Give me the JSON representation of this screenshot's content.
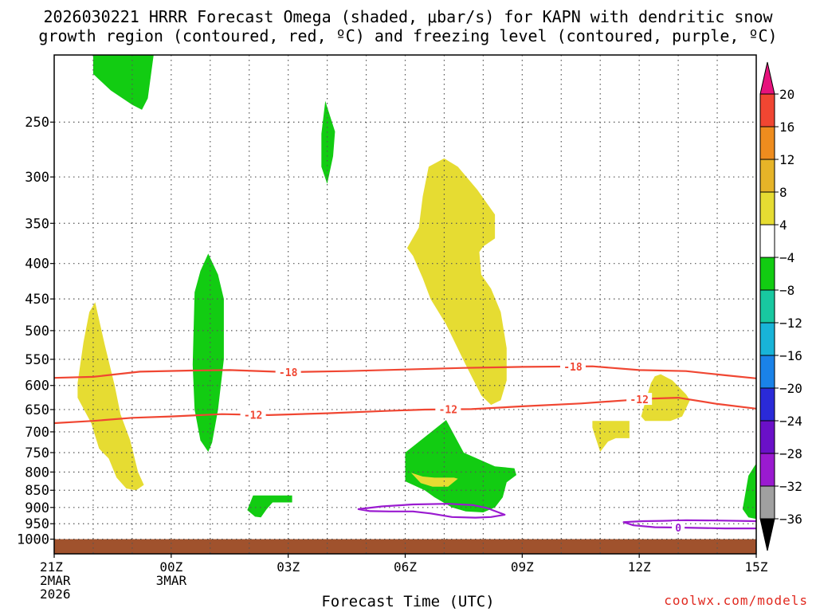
{
  "chart_data": {
    "type": "heatmap",
    "title_line1": "2026030221 HRRR Forecast Omega (shaded, μbar/s) for KAPN with dendritic snow",
    "title_line2": "growth region (contoured, red, ºC) and freezing level (contoured, purple, ºC)",
    "xlabel": "Forecast Time (UTC)",
    "ylabel": "",
    "credit": "coolwx.com/models",
    "x_range_hours": [
      0,
      18
    ],
    "y_scale": "log-pressure",
    "y_range_mb": [
      1050,
      200
    ],
    "x_ticks": [
      {
        "hour": 0,
        "lines": [
          "21Z",
          "2MAR",
          "2026"
        ]
      },
      {
        "hour": 3,
        "lines": [
          "00Z",
          "3MAR"
        ]
      },
      {
        "hour": 6,
        "lines": [
          "03Z"
        ]
      },
      {
        "hour": 9,
        "lines": [
          "06Z"
        ]
      },
      {
        "hour": 12,
        "lines": [
          "09Z"
        ]
      },
      {
        "hour": 15,
        "lines": [
          "12Z"
        ]
      },
      {
        "hour": 18,
        "lines": [
          "15Z"
        ]
      }
    ],
    "y_ticks": [
      250,
      300,
      350,
      400,
      450,
      500,
      550,
      600,
      650,
      700,
      750,
      800,
      850,
      900,
      950,
      1000
    ],
    "grid": true,
    "colorbar": {
      "levels": [
        -36,
        -32,
        -28,
        -24,
        -20,
        -16,
        -12,
        -8,
        -4,
        4,
        8,
        12,
        16,
        20
      ],
      "colors": [
        "#a0a0a0",
        "#9a1ad0",
        "#6a10c8",
        "#2a2ad8",
        "#1a82e8",
        "#18b4d8",
        "#18c8a0",
        "#12cc12",
        "#ffffff",
        "#e6dc32",
        "#e6b428",
        "#ee8c1e",
        "#f04632",
        "#e6127c"
      ],
      "under_color": "#000000",
      "over_color": "#e6127c"
    },
    "omega_regions": [
      {
        "level": "-8",
        "color": "#12cc12",
        "points": [
          [
            1,
            200
          ],
          [
            2.55,
            200
          ],
          [
            2.4,
            231
          ],
          [
            2.25,
            240
          ],
          [
            2.0,
            236
          ],
          [
            1.45,
            225
          ],
          [
            1.0,
            213
          ]
        ]
      },
      {
        "level": "-8",
        "color": "#12cc12",
        "points": [
          [
            6.95,
            233
          ],
          [
            7.2,
            258
          ],
          [
            7.15,
            280
          ],
          [
            7.0,
            307
          ],
          [
            6.85,
            290
          ],
          [
            6.85,
            260
          ]
        ]
      },
      {
        "level": "-8",
        "color": "#12cc12",
        "points": [
          [
            3.95,
            387
          ],
          [
            4.2,
            415
          ],
          [
            4.35,
            450
          ],
          [
            4.35,
            550
          ],
          [
            4.2,
            650
          ],
          [
            4.05,
            725
          ],
          [
            3.95,
            748
          ],
          [
            3.75,
            720
          ],
          [
            3.6,
            650
          ],
          [
            3.55,
            560
          ],
          [
            3.6,
            440
          ],
          [
            3.75,
            410
          ]
        ]
      },
      {
        "level": "-8",
        "color": "#12cc12",
        "points": [
          [
            5.1,
            865
          ],
          [
            6.1,
            865
          ],
          [
            6.1,
            885
          ],
          [
            5.6,
            885
          ],
          [
            5.45,
            905
          ],
          [
            5.3,
            930
          ],
          [
            5.15,
            928
          ],
          [
            4.95,
            908
          ]
        ]
      },
      {
        "level": "-8",
        "color": "#12cc12",
        "points": [
          [
            9.0,
            750
          ],
          [
            10.05,
            673
          ],
          [
            10.5,
            750
          ],
          [
            11.3,
            785
          ],
          [
            11.8,
            790
          ],
          [
            11.85,
            808
          ],
          [
            11.6,
            828
          ],
          [
            11.5,
            870
          ],
          [
            11.3,
            900
          ],
          [
            11.0,
            915
          ],
          [
            10.55,
            912
          ],
          [
            10.2,
            900
          ],
          [
            9.75,
            870
          ],
          [
            9.5,
            850
          ],
          [
            9.0,
            825
          ]
        ]
      },
      {
        "level": "-8",
        "color": "#12cc12",
        "points": [
          [
            17.95,
            785
          ],
          [
            18.0,
            778
          ],
          [
            18.0,
            935
          ],
          [
            17.8,
            930
          ],
          [
            17.65,
            905
          ],
          [
            17.75,
            840
          ],
          [
            17.8,
            810
          ]
        ]
      },
      {
        "level": "4",
        "color": "#e6dc32",
        "points": [
          [
            1.05,
            455
          ],
          [
            1.3,
            525
          ],
          [
            1.55,
            600
          ],
          [
            1.7,
            660
          ],
          [
            1.95,
            720
          ],
          [
            2.15,
            800
          ],
          [
            2.3,
            835
          ],
          [
            2.1,
            850
          ],
          [
            1.85,
            845
          ],
          [
            1.6,
            815
          ],
          [
            1.4,
            765
          ],
          [
            1.15,
            740
          ],
          [
            0.95,
            680
          ],
          [
            0.6,
            625
          ],
          [
            0.6,
            595
          ],
          [
            0.75,
            520
          ],
          [
            0.9,
            470
          ]
        ]
      },
      {
        "level": "4",
        "color": "#e6dc32",
        "points": [
          [
            9.6,
            290
          ],
          [
            10.0,
            282
          ],
          [
            10.35,
            290
          ],
          [
            10.85,
            313
          ],
          [
            11.3,
            340
          ],
          [
            11.3,
            368
          ],
          [
            11.0,
            378
          ],
          [
            10.9,
            385
          ],
          [
            10.95,
            415
          ],
          [
            11.2,
            435
          ],
          [
            11.45,
            470
          ],
          [
            11.6,
            530
          ],
          [
            11.6,
            590
          ],
          [
            11.45,
            630
          ],
          [
            11.2,
            640
          ],
          [
            10.95,
            620
          ],
          [
            10.55,
            560
          ],
          [
            10.05,
            490
          ],
          [
            9.65,
            450
          ],
          [
            9.45,
            420
          ],
          [
            9.2,
            390
          ],
          [
            9.05,
            380
          ],
          [
            9.35,
            355
          ],
          [
            9.45,
            320
          ]
        ]
      },
      {
        "level": "4",
        "color": "#e6dc32",
        "points": [
          [
            13.8,
            675
          ],
          [
            14.75,
            675
          ],
          [
            14.75,
            715
          ],
          [
            14.4,
            715
          ],
          [
            14.2,
            723
          ],
          [
            14.0,
            748
          ],
          [
            13.85,
            705
          ],
          [
            13.8,
            690
          ]
        ]
      },
      {
        "level": "4",
        "color": "#e6dc32",
        "points": [
          [
            15.4,
            582
          ],
          [
            15.55,
            578
          ],
          [
            15.85,
            590
          ],
          [
            16.2,
            618
          ],
          [
            16.3,
            630
          ],
          [
            16.1,
            665
          ],
          [
            15.8,
            675
          ],
          [
            15.45,
            675
          ],
          [
            15.15,
            675
          ],
          [
            15.05,
            665
          ],
          [
            15.15,
            635
          ],
          [
            15.3,
            595
          ]
        ]
      },
      {
        "level": "4",
        "color": "#e6dc32",
        "points": [
          [
            9.15,
            802
          ],
          [
            9.45,
            812
          ],
          [
            9.75,
            815
          ],
          [
            10.0,
            815
          ],
          [
            10.25,
            815
          ],
          [
            10.35,
            818
          ],
          [
            10.1,
            840
          ],
          [
            9.7,
            840
          ],
          [
            9.4,
            830
          ]
        ]
      }
    ],
    "dgz_contours": [
      {
        "label": "-18",
        "color": "#f04632",
        "points": [
          [
            0,
            585
          ],
          [
            1.0,
            583
          ],
          [
            2.2,
            573
          ],
          [
            3.5,
            571
          ],
          [
            4.5,
            570
          ],
          [
            6.0,
            574
          ],
          [
            7.5,
            572
          ],
          [
            9.0,
            569
          ],
          [
            10.5,
            566
          ],
          [
            12.0,
            564
          ],
          [
            13.8,
            563
          ],
          [
            15.0,
            570
          ],
          [
            16.2,
            572
          ],
          [
            17.2,
            580
          ],
          [
            18.0,
            586
          ]
        ],
        "label_hours": [
          6.0,
          13.3
        ]
      },
      {
        "label": "-12",
        "color": "#f04632",
        "points": [
          [
            0,
            680
          ],
          [
            1.0,
            675
          ],
          [
            2.0,
            668
          ],
          [
            3.0,
            665
          ],
          [
            4.3,
            660
          ],
          [
            5.5,
            662
          ],
          [
            7.0,
            658
          ],
          [
            8.5,
            653
          ],
          [
            9.5,
            650
          ],
          [
            10.7,
            649
          ],
          [
            12.0,
            643
          ],
          [
            13.5,
            637
          ],
          [
            14.7,
            630
          ],
          [
            15.2,
            627
          ],
          [
            16.0,
            625
          ],
          [
            17.0,
            638
          ],
          [
            18.0,
            648
          ]
        ],
        "label_hours": [
          5.1,
          10.1,
          15.0
        ]
      }
    ],
    "freezing_contours": [
      {
        "label": "0",
        "color": "#9a1ad0",
        "closed": true,
        "points": [
          [
            7.8,
            905
          ],
          [
            8.4,
            897
          ],
          [
            9.2,
            891
          ],
          [
            10.1,
            889
          ],
          [
            10.75,
            893
          ],
          [
            11.1,
            902
          ],
          [
            11.55,
            922
          ],
          [
            11.2,
            929
          ],
          [
            10.8,
            931
          ],
          [
            10.2,
            929
          ],
          [
            9.65,
            918
          ],
          [
            9.2,
            912
          ],
          [
            8.6,
            912
          ],
          [
            8.1,
            911
          ]
        ]
      },
      {
        "label": "0",
        "color": "#9a1ad0",
        "closed": false,
        "points": [
          [
            18.0,
            965
          ],
          [
            17.2,
            965
          ],
          [
            16.0,
            962
          ],
          [
            15.4,
            961
          ],
          [
            14.85,
            955
          ],
          [
            14.6,
            945
          ],
          [
            15.1,
            942
          ],
          [
            15.6,
            941
          ],
          [
            16.2,
            939
          ],
          [
            17.0,
            940
          ],
          [
            18.0,
            942
          ]
        ],
        "label_hours": [
          16.0
        ]
      }
    ],
    "ground": {
      "color": "#a0522d",
      "pressure_mb": 1000
    }
  }
}
